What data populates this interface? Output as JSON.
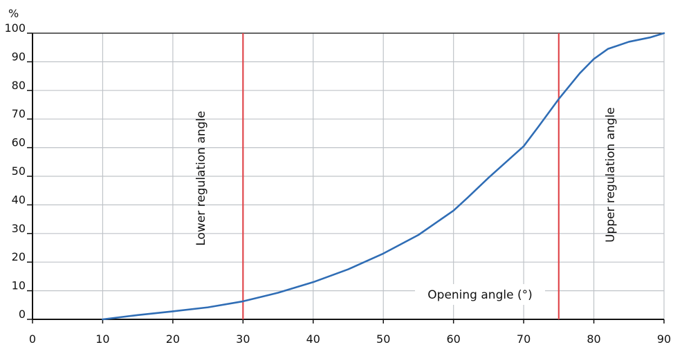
{
  "chart_data": {
    "type": "line",
    "title": "",
    "xlabel": "Opening angle (°)",
    "ylabel": "%",
    "xlim": [
      0,
      90
    ],
    "ylim": [
      0,
      100
    ],
    "x_ticks": [
      0,
      10,
      20,
      30,
      40,
      50,
      60,
      70,
      80,
      90
    ],
    "y_ticks": [
      0,
      10,
      20,
      30,
      40,
      50,
      60,
      70,
      80,
      90,
      100
    ],
    "grid": true,
    "series": [
      {
        "color": "#2f6db5",
        "points": [
          [
            10,
            0
          ],
          [
            15,
            1.5
          ],
          [
            20,
            2.8
          ],
          [
            25,
            4.2
          ],
          [
            30,
            6.3
          ],
          [
            35,
            9.3
          ],
          [
            40,
            13
          ],
          [
            45,
            17.5
          ],
          [
            50,
            23
          ],
          [
            55,
            29.5
          ],
          [
            60,
            38
          ],
          [
            62,
            42.5
          ],
          [
            65,
            49.5
          ],
          [
            70,
            60.5
          ],
          [
            72,
            67
          ],
          [
            75,
            77
          ],
          [
            78,
            86
          ],
          [
            80,
            91
          ],
          [
            82,
            94.5
          ],
          [
            85,
            97
          ],
          [
            88,
            98.5
          ],
          [
            90,
            100
          ]
        ]
      }
    ],
    "vertical_lines": [
      {
        "x": 30,
        "color": "#e0474c",
        "label": "Lower regulation angle"
      },
      {
        "x": 75,
        "color": "#e0474c",
        "label": "Upper regulation angle"
      }
    ],
    "annotations": [
      {
        "text": "Opening angle (°)"
      }
    ]
  }
}
